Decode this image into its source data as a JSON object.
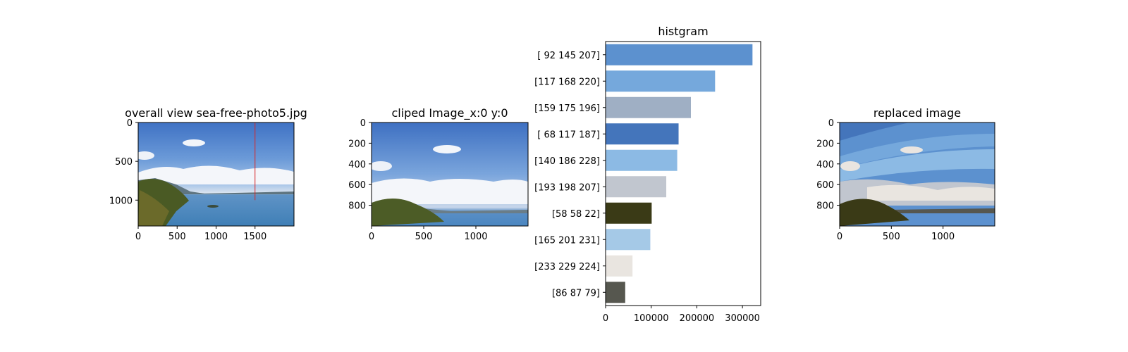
{
  "figure": {
    "panels": [
      {
        "title": "overall view sea-free-photo5.jpg",
        "x_ticks": [
          "0",
          "500",
          "1000",
          "1500"
        ],
        "y_ticks": [
          "0",
          "500",
          "1000"
        ],
        "x_range": [
          0,
          2000
        ],
        "y_range": [
          0,
          1333
        ],
        "x_tick_values": [
          0,
          500,
          1000,
          1500
        ],
        "y_tick_values": [
          0,
          500,
          1000
        ],
        "clip_marker": {
          "x": 1500,
          "y_from": 0,
          "y_to": 1000,
          "color": "#d62728"
        }
      },
      {
        "title": "cliped Image_x:0 y:0",
        "x_ticks": [
          "0",
          "500",
          "1000"
        ],
        "y_ticks": [
          "0",
          "200",
          "400",
          "600",
          "800"
        ],
        "x_range": [
          0,
          1500
        ],
        "y_range": [
          0,
          1000
        ],
        "x_tick_values": [
          0,
          500,
          1000
        ],
        "y_tick_values": [
          0,
          200,
          400,
          600,
          800
        ]
      },
      {
        "title": "replaced image",
        "x_ticks": [
          "0",
          "500",
          "1000"
        ],
        "y_ticks": [
          "0",
          "200",
          "400",
          "600",
          "800"
        ],
        "x_range": [
          0,
          1500
        ],
        "y_range": [
          0,
          1000
        ],
        "x_tick_values": [
          0,
          500,
          1000
        ],
        "y_tick_values": [
          0,
          200,
          400,
          600,
          800
        ]
      }
    ]
  },
  "chart_data": {
    "type": "bar",
    "orientation": "horizontal",
    "title": "histgram",
    "xlabel": "",
    "ylabel": "",
    "xlim": [
      0,
      340000
    ],
    "x_ticks": [
      0,
      100000,
      200000,
      300000
    ],
    "x_tick_labels": [
      "0",
      "100000",
      "200000",
      "300000"
    ],
    "categories": [
      "[ 92 145 207]",
      "[117 168 220]",
      "[159 175 196]",
      "[ 68 117 187]",
      "[140 186 228]",
      "[193 198 207]",
      "[58 58 22]",
      "[165 201 231]",
      "[233 229 224]",
      "[86 87 79]"
    ],
    "values": [
      322000,
      240000,
      187000,
      160000,
      157000,
      133000,
      101000,
      98000,
      59000,
      43000
    ],
    "colors": [
      "#5c91cf",
      "#75a8dc",
      "#9fafc4",
      "#4475bb",
      "#8cbae4",
      "#c1c6cf",
      "#3a3a16",
      "#a5c9e7",
      "#e9e5e0",
      "#56574f"
    ],
    "grid": false
  }
}
